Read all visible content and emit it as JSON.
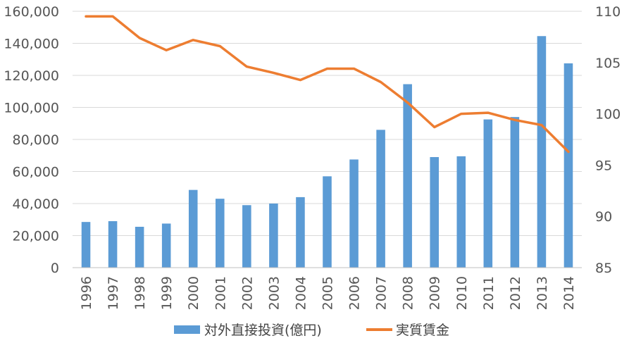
{
  "chart_data": {
    "type": "bar+line",
    "categories": [
      "1996",
      "1997",
      "1998",
      "1999",
      "2000",
      "2001",
      "2002",
      "2003",
      "2004",
      "2005",
      "2006",
      "2007",
      "2008",
      "2009",
      "2010",
      "2011",
      "2012",
      "2013",
      "2014"
    ],
    "series": [
      {
        "name": "対外直接投資(億円)",
        "type": "bar",
        "axis": "left",
        "color": "#5B9BD5",
        "values": [
          28500,
          29000,
          25500,
          27500,
          48500,
          43000,
          39000,
          40000,
          44000,
          57000,
          67500,
          86000,
          114500,
          69000,
          69500,
          92500,
          94000,
          144500,
          127500
        ]
      },
      {
        "name": "実質賃金",
        "type": "line",
        "axis": "right",
        "color": "#ED7D31",
        "values": [
          109.5,
          109.5,
          107.4,
          106.2,
          107.2,
          106.6,
          104.6,
          104.0,
          103.3,
          104.4,
          104.4,
          103.1,
          101.1,
          98.7,
          100.0,
          100.1,
          99.4,
          98.9,
          96.3
        ]
      }
    ],
    "y_left": {
      "min": 0,
      "max": 160000,
      "step": 20000,
      "tick_labels": [
        "0",
        "20,000",
        "40,000",
        "60,000",
        "80,000",
        "100,000",
        "120,000",
        "140,000",
        "160,000"
      ]
    },
    "y_right": {
      "min": 85,
      "max": 110,
      "step": 5,
      "tick_labels": [
        "85",
        "90",
        "95",
        "100",
        "105",
        "110"
      ]
    },
    "grid": true,
    "legend_position": "bottom"
  }
}
